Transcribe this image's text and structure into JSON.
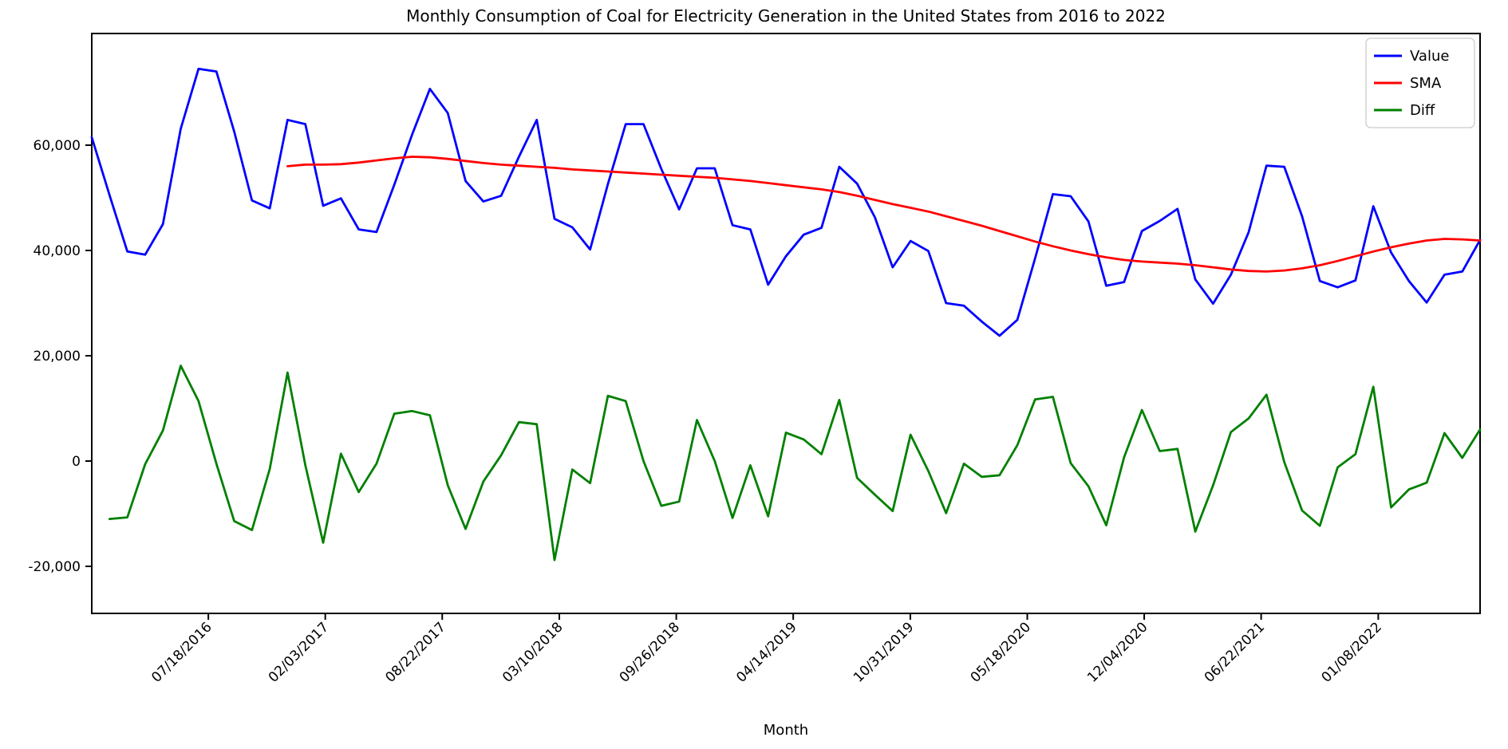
{
  "chart_data": {
    "type": "line",
    "title": "Monthly Consumption of Coal for Electricity Generation in the United States from 2016 to 2022",
    "xlabel": "Month",
    "ylabel": "",
    "grid": false,
    "legend_position": "upper right",
    "background_color": "#ffffff",
    "axis_color": "#000000",
    "x_count": 79,
    "x_start_label": "01/2016",
    "x_end_label": "07/2022",
    "ylim": [
      -28900,
      81200
    ],
    "yticks": [
      -20000,
      0,
      20000,
      40000,
      60000
    ],
    "y_tick_labels": [
      "-20,000",
      "0",
      "20,000",
      "40,000",
      "60,000"
    ],
    "x_tick_positions": [
      6.55,
      13.12,
      19.69,
      26.27,
      32.84,
      39.41,
      45.99,
      52.56,
      59.13,
      65.7,
      72.28
    ],
    "x_tick_labels": [
      "07/18/2016",
      "02/03/2017",
      "08/22/2017",
      "03/10/2018",
      "09/26/2018",
      "04/14/2019",
      "10/31/2019",
      "05/18/2020",
      "12/04/2020",
      "06/22/2021",
      "01/08/2022"
    ],
    "series": [
      {
        "name": "Value",
        "color": "#0000ff",
        "start_index": 0,
        "values": [
          61500,
          50500,
          39800,
          39200,
          45000,
          63100,
          74500,
          74000,
          62600,
          49500,
          48000,
          64800,
          64000,
          48500,
          49900,
          44000,
          43500,
          52500,
          62000,
          70700,
          66100,
          53200,
          49300,
          50400,
          57800,
          64800,
          46000,
          44400,
          40200,
          52600,
          64000,
          64000,
          55500,
          47800,
          55600,
          55600,
          44800,
          44000,
          33500,
          38900,
          43000,
          44300,
          55900,
          52700,
          46300,
          36800,
          41800,
          39900,
          30000,
          29500,
          26500,
          23800,
          26800,
          38500,
          50700,
          50300,
          45500,
          33300,
          34000,
          43700,
          45600,
          47900,
          34500,
          29900,
          35400,
          43500,
          56100,
          55900,
          46500,
          34200,
          33000,
          34300,
          48400,
          39600,
          34200,
          30100,
          35400,
          36000,
          42000
        ]
      },
      {
        "name": "SMA",
        "color": "#ff0000",
        "start_index": 11,
        "values": [
          56000,
          56300,
          56300,
          56400,
          56700,
          57100,
          57500,
          57800,
          57700,
          57400,
          57000,
          56600,
          56300,
          56100,
          55900,
          55700,
          55400,
          55200,
          55000,
          54800,
          54600,
          54400,
          54200,
          54000,
          53800,
          53500,
          53200,
          52800,
          52400,
          52000,
          51600,
          51100,
          50400,
          49600,
          48800,
          48100,
          47400,
          46500,
          45600,
          44700,
          43700,
          42700,
          41700,
          40800,
          40000,
          39300,
          38700,
          38200,
          37900,
          37700,
          37500,
          37200,
          36800,
          36400,
          36100,
          36000,
          36200,
          36600,
          37200,
          38000,
          38900,
          39800,
          40600,
          41300,
          41900,
          42200,
          42100,
          41900
        ]
      },
      {
        "name": "Diff",
        "color": "#008000",
        "start_index": 1,
        "values": [
          -11000,
          -10700,
          -600,
          5800,
          18100,
          11400,
          -500,
          -11400,
          -13100,
          -1500,
          16800,
          -800,
          -15500,
          1400,
          -5900,
          -500,
          9000,
          9500,
          8700,
          -4600,
          -12900,
          -3900,
          1100,
          7400,
          7000,
          -18800,
          -1600,
          -4200,
          12400,
          11400,
          0,
          -8500,
          -7700,
          7800,
          0,
          -10800,
          -800,
          -10500,
          5400,
          4100,
          1300,
          11600,
          -3200,
          -6400,
          -9500,
          5000,
          -1900,
          -9900,
          -500,
          -3000,
          -2700,
          3000,
          11700,
          12200,
          -400,
          -4800,
          -12200,
          700,
          9700,
          1900,
          2300,
          -13400,
          -4600,
          5500,
          8100,
          12600,
          -200,
          -9400,
          -12300,
          -1200,
          1300,
          14100,
          -8800,
          -5400,
          -4100,
          5300,
          600,
          6000
        ]
      }
    ],
    "legend": {
      "entries": [
        {
          "label": "Value",
          "color": "#0000ff"
        },
        {
          "label": "SMA",
          "color": "#ff0000"
        },
        {
          "label": "Diff",
          "color": "#008000"
        }
      ]
    }
  }
}
